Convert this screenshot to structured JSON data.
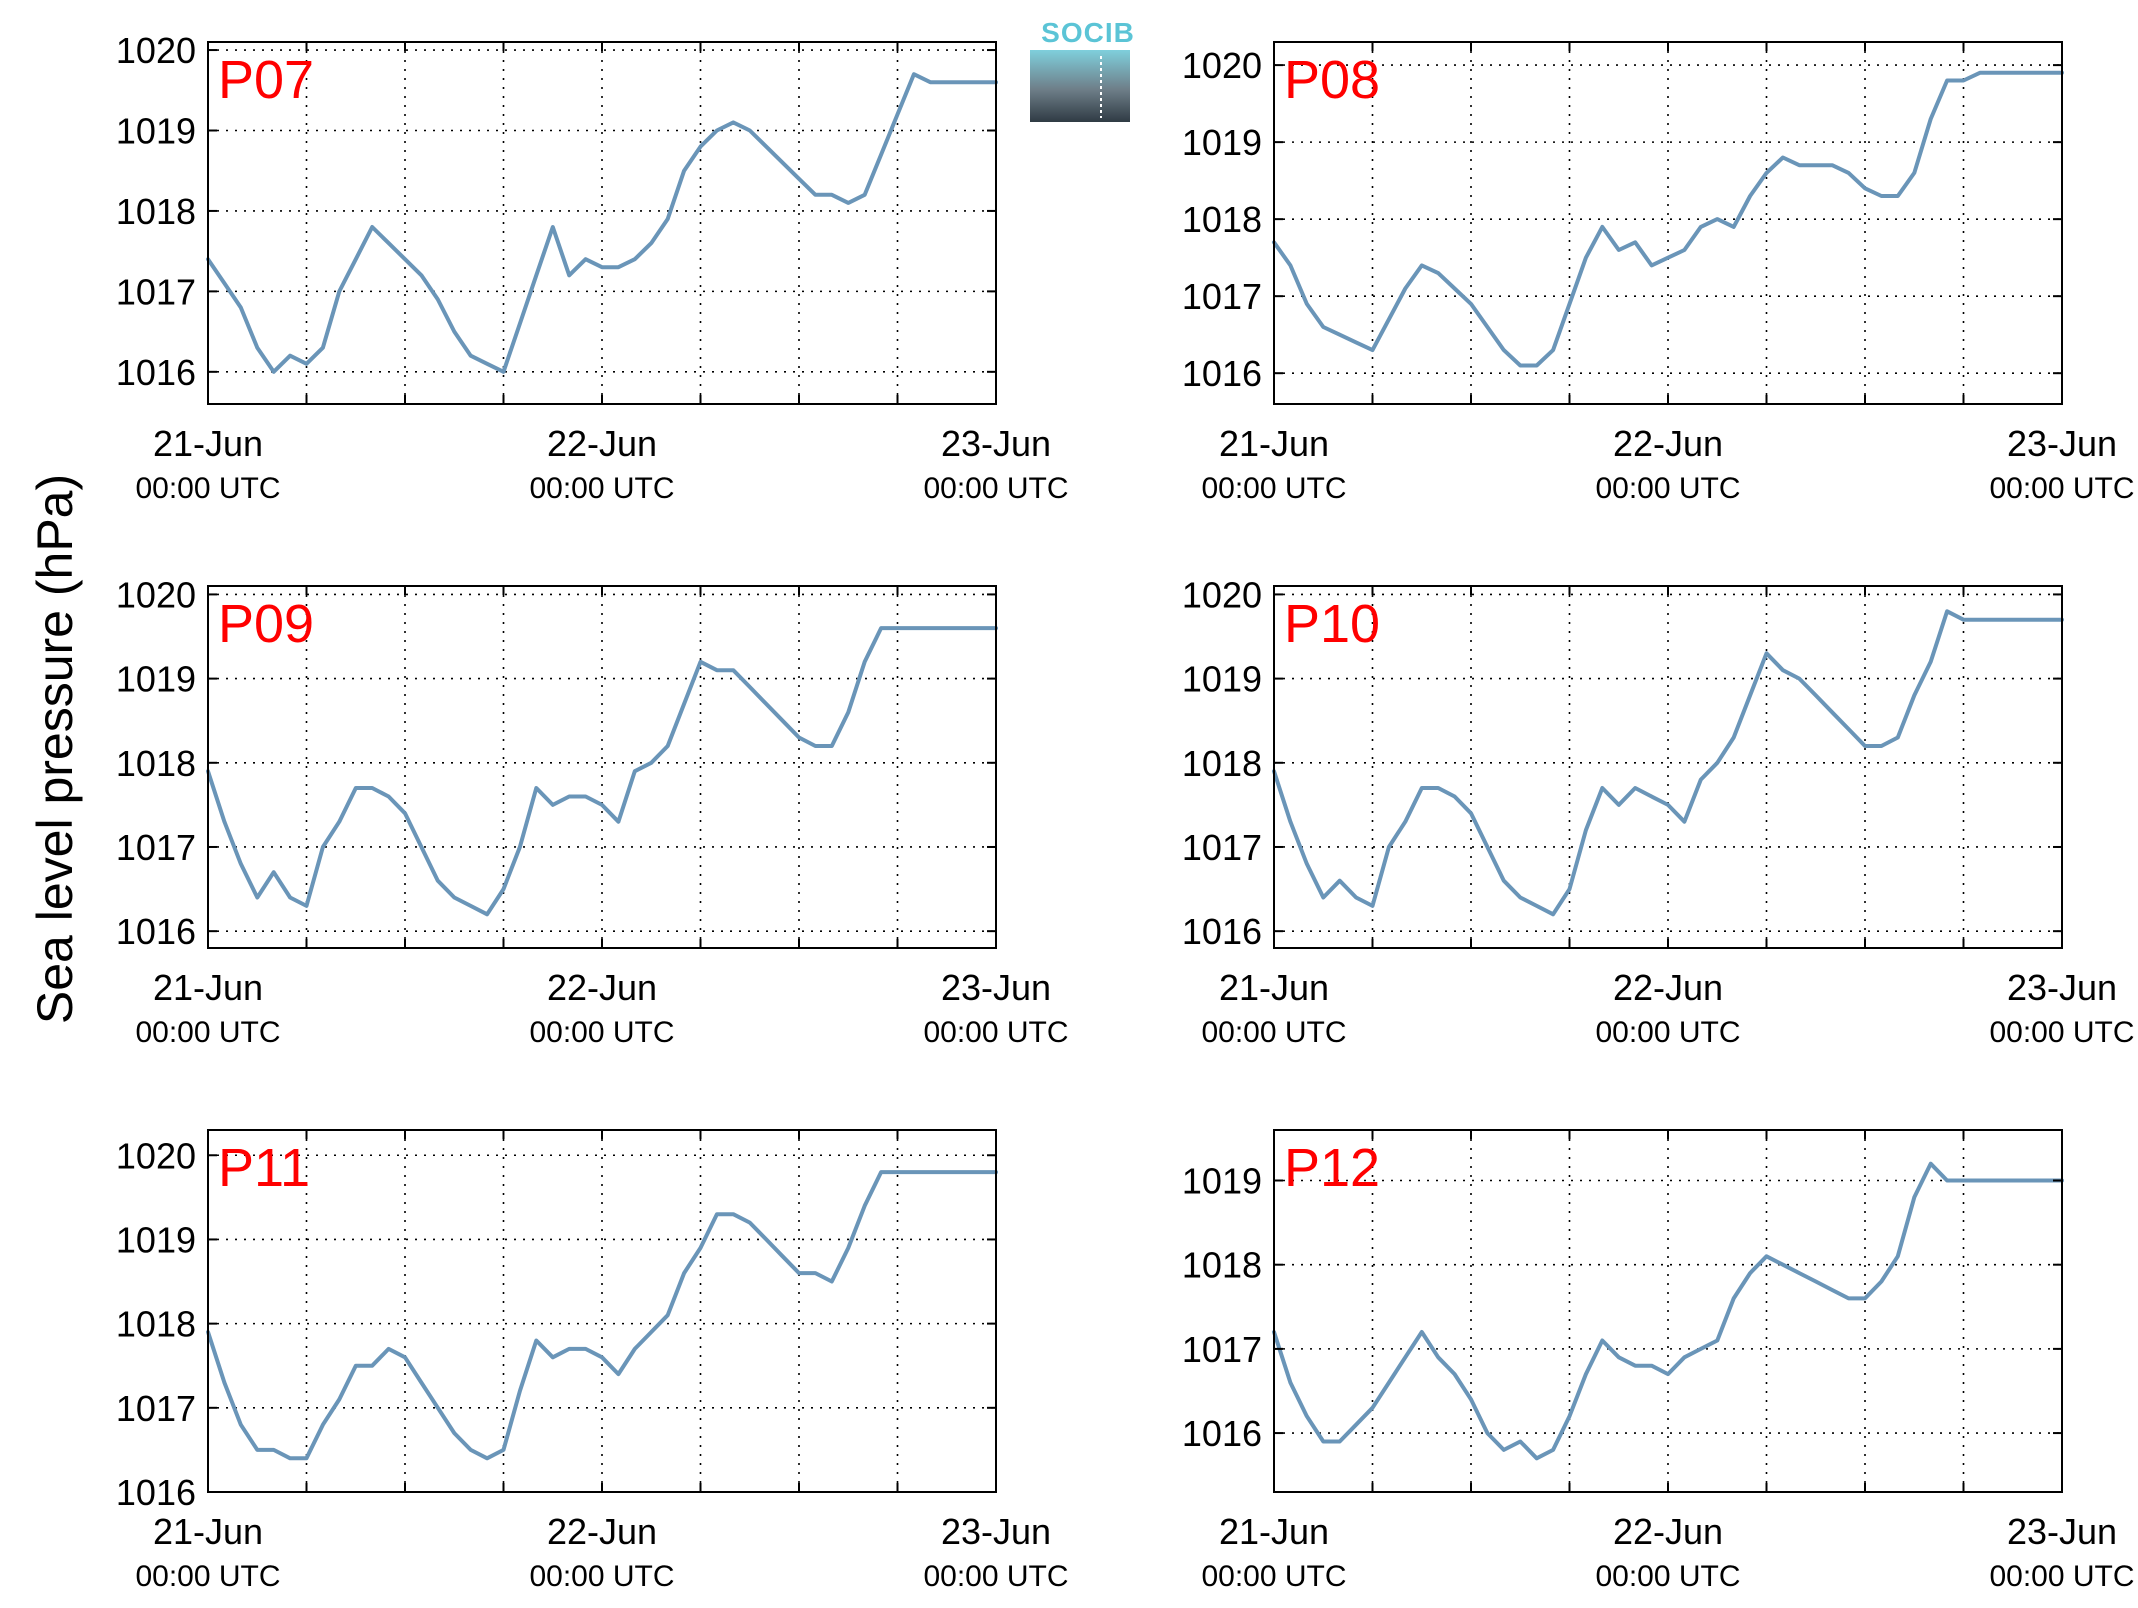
{
  "ylabel": "Sea level pressure (hPa)",
  "logo": {
    "text": "SOCIB"
  },
  "colors": {
    "line": "#6a95b8",
    "panel_label": "#ff0000",
    "grid": "#000000"
  },
  "chart_data": [
    {
      "type": "line",
      "label": "P07",
      "xlim": [
        0,
        48
      ],
      "ylim": [
        1015.6,
        1020.1
      ],
      "yticks": [
        1016,
        1017,
        1018,
        1019,
        1020
      ],
      "xticks": [
        {
          "x": 0,
          "line1": "21-Jun",
          "line2": "00:00 UTC"
        },
        {
          "x": 24,
          "line1": "22-Jun",
          "line2": "00:00 UTC"
        },
        {
          "x": 48,
          "line1": "23-Jun",
          "line2": "00:00 UTC"
        }
      ],
      "minor_x": [
        6,
        12,
        18,
        30,
        36,
        42
      ],
      "x": [
        0,
        1,
        2,
        3,
        4,
        5,
        6,
        7,
        8,
        9,
        10,
        11,
        12,
        13,
        14,
        15,
        16,
        17,
        18,
        19,
        20,
        21,
        22,
        23,
        24,
        25,
        26,
        27,
        28,
        29,
        30,
        31,
        32,
        33,
        34,
        35,
        36,
        37,
        38,
        39,
        40,
        41,
        42,
        43,
        44,
        45,
        46,
        47,
        48
      ],
      "y": [
        1017.4,
        1017.1,
        1016.8,
        1016.3,
        1016.0,
        1016.2,
        1016.1,
        1016.3,
        1017.0,
        1017.4,
        1017.8,
        1017.6,
        1017.4,
        1017.2,
        1016.9,
        1016.5,
        1016.2,
        1016.1,
        1016.0,
        1016.6,
        1017.2,
        1017.8,
        1017.2,
        1017.4,
        1017.3,
        1017.3,
        1017.4,
        1017.6,
        1017.9,
        1018.5,
        1018.8,
        1019.0,
        1019.1,
        1019.0,
        1018.8,
        1018.6,
        1018.4,
        1018.2,
        1018.2,
        1018.1,
        1018.2,
        1018.7,
        1019.2,
        1019.7,
        1019.6,
        1019.6,
        1019.6,
        1019.6,
        1019.6
      ]
    },
    {
      "type": "line",
      "label": "P08",
      "xlim": [
        0,
        48
      ],
      "ylim": [
        1015.6,
        1020.3
      ],
      "yticks": [
        1016,
        1017,
        1018,
        1019,
        1020
      ],
      "xticks": [
        {
          "x": 0,
          "line1": "21-Jun",
          "line2": "00:00 UTC"
        },
        {
          "x": 24,
          "line1": "22-Jun",
          "line2": "00:00 UTC"
        },
        {
          "x": 48,
          "line1": "23-Jun",
          "line2": "00:00 UTC"
        }
      ],
      "minor_x": [
        6,
        12,
        18,
        30,
        36,
        42
      ],
      "x": [
        0,
        1,
        2,
        3,
        4,
        5,
        6,
        7,
        8,
        9,
        10,
        11,
        12,
        13,
        14,
        15,
        16,
        17,
        18,
        19,
        20,
        21,
        22,
        23,
        24,
        25,
        26,
        27,
        28,
        29,
        30,
        31,
        32,
        33,
        34,
        35,
        36,
        37,
        38,
        39,
        40,
        41,
        42,
        43,
        44,
        45,
        46,
        47,
        48
      ],
      "y": [
        1017.7,
        1017.4,
        1016.9,
        1016.6,
        1016.5,
        1016.4,
        1016.3,
        1016.7,
        1017.1,
        1017.4,
        1017.3,
        1017.1,
        1016.9,
        1016.6,
        1016.3,
        1016.1,
        1016.1,
        1016.3,
        1016.9,
        1017.5,
        1017.9,
        1017.6,
        1017.7,
        1017.4,
        1017.5,
        1017.6,
        1017.9,
        1018.0,
        1017.9,
        1018.3,
        1018.6,
        1018.8,
        1018.7,
        1018.7,
        1018.7,
        1018.6,
        1018.4,
        1018.3,
        1018.3,
        1018.6,
        1019.3,
        1019.8,
        1019.8,
        1019.9,
        1019.9,
        1019.9,
        1019.9,
        1019.9,
        1019.9
      ]
    },
    {
      "type": "line",
      "label": "P09",
      "xlim": [
        0,
        48
      ],
      "ylim": [
        1015.8,
        1020.1
      ],
      "yticks": [
        1016,
        1017,
        1018,
        1019,
        1020
      ],
      "xticks": [
        {
          "x": 0,
          "line1": "21-Jun",
          "line2": "00:00 UTC"
        },
        {
          "x": 24,
          "line1": "22-Jun",
          "line2": "00:00 UTC"
        },
        {
          "x": 48,
          "line1": "23-Jun",
          "line2": "00:00 UTC"
        }
      ],
      "minor_x": [
        6,
        12,
        18,
        30,
        36,
        42
      ],
      "x": [
        0,
        1,
        2,
        3,
        4,
        5,
        6,
        7,
        8,
        9,
        10,
        11,
        12,
        13,
        14,
        15,
        16,
        17,
        18,
        19,
        20,
        21,
        22,
        23,
        24,
        25,
        26,
        27,
        28,
        29,
        30,
        31,
        32,
        33,
        34,
        35,
        36,
        37,
        38,
        39,
        40,
        41,
        42,
        43,
        44,
        45,
        46,
        47,
        48
      ],
      "y": [
        1017.9,
        1017.3,
        1016.8,
        1016.4,
        1016.7,
        1016.4,
        1016.3,
        1017.0,
        1017.3,
        1017.7,
        1017.7,
        1017.6,
        1017.4,
        1017.0,
        1016.6,
        1016.4,
        1016.3,
        1016.2,
        1016.5,
        1017.0,
        1017.7,
        1017.5,
        1017.6,
        1017.6,
        1017.5,
        1017.3,
        1017.9,
        1018.0,
        1018.2,
        1018.7,
        1019.2,
        1019.1,
        1019.1,
        1018.9,
        1018.7,
        1018.5,
        1018.3,
        1018.2,
        1018.2,
        1018.6,
        1019.2,
        1019.6,
        1019.6,
        1019.6,
        1019.6,
        1019.6,
        1019.6,
        1019.6,
        1019.6
      ]
    },
    {
      "type": "line",
      "label": "P10",
      "xlim": [
        0,
        48
      ],
      "ylim": [
        1015.8,
        1020.1
      ],
      "yticks": [
        1016,
        1017,
        1018,
        1019,
        1020
      ],
      "xticks": [
        {
          "x": 0,
          "line1": "21-Jun",
          "line2": "00:00 UTC"
        },
        {
          "x": 24,
          "line1": "22-Jun",
          "line2": "00:00 UTC"
        },
        {
          "x": 48,
          "line1": "23-Jun",
          "line2": "00:00 UTC"
        }
      ],
      "minor_x": [
        6,
        12,
        18,
        30,
        36,
        42
      ],
      "x": [
        0,
        1,
        2,
        3,
        4,
        5,
        6,
        7,
        8,
        9,
        10,
        11,
        12,
        13,
        14,
        15,
        16,
        17,
        18,
        19,
        20,
        21,
        22,
        23,
        24,
        25,
        26,
        27,
        28,
        29,
        30,
        31,
        32,
        33,
        34,
        35,
        36,
        37,
        38,
        39,
        40,
        41,
        42,
        43,
        44,
        45,
        46,
        47,
        48
      ],
      "y": [
        1017.9,
        1017.3,
        1016.8,
        1016.4,
        1016.6,
        1016.4,
        1016.3,
        1017.0,
        1017.3,
        1017.7,
        1017.7,
        1017.6,
        1017.4,
        1017.0,
        1016.6,
        1016.4,
        1016.3,
        1016.2,
        1016.5,
        1017.2,
        1017.7,
        1017.5,
        1017.7,
        1017.6,
        1017.5,
        1017.3,
        1017.8,
        1018.0,
        1018.3,
        1018.8,
        1019.3,
        1019.1,
        1019.0,
        1018.8,
        1018.6,
        1018.4,
        1018.2,
        1018.2,
        1018.3,
        1018.8,
        1019.2,
        1019.8,
        1019.7,
        1019.7,
        1019.7,
        1019.7,
        1019.7,
        1019.7,
        1019.7
      ]
    },
    {
      "type": "line",
      "label": "P11",
      "xlim": [
        0,
        48
      ],
      "ylim": [
        1016.0,
        1020.3
      ],
      "yticks": [
        1016,
        1017,
        1018,
        1019,
        1020
      ],
      "xticks": [
        {
          "x": 0,
          "line1": "21-Jun",
          "line2": "00:00 UTC"
        },
        {
          "x": 24,
          "line1": "22-Jun",
          "line2": "00:00 UTC"
        },
        {
          "x": 48,
          "line1": "23-Jun",
          "line2": "00:00 UTC"
        }
      ],
      "minor_x": [
        6,
        12,
        18,
        30,
        36,
        42
      ],
      "x": [
        0,
        1,
        2,
        3,
        4,
        5,
        6,
        7,
        8,
        9,
        10,
        11,
        12,
        13,
        14,
        15,
        16,
        17,
        18,
        19,
        20,
        21,
        22,
        23,
        24,
        25,
        26,
        27,
        28,
        29,
        30,
        31,
        32,
        33,
        34,
        35,
        36,
        37,
        38,
        39,
        40,
        41,
        42,
        43,
        44,
        45,
        46,
        47,
        48
      ],
      "y": [
        1017.9,
        1017.3,
        1016.8,
        1016.5,
        1016.5,
        1016.4,
        1016.4,
        1016.8,
        1017.1,
        1017.5,
        1017.5,
        1017.7,
        1017.6,
        1017.3,
        1017.0,
        1016.7,
        1016.5,
        1016.4,
        1016.5,
        1017.2,
        1017.8,
        1017.6,
        1017.7,
        1017.7,
        1017.6,
        1017.4,
        1017.7,
        1017.9,
        1018.1,
        1018.6,
        1018.9,
        1019.3,
        1019.3,
        1019.2,
        1019.0,
        1018.8,
        1018.6,
        1018.6,
        1018.5,
        1018.9,
        1019.4,
        1019.8,
        1019.8,
        1019.8,
        1019.8,
        1019.8,
        1019.8,
        1019.8,
        1019.8
      ]
    },
    {
      "type": "line",
      "label": "P12",
      "xlim": [
        0,
        48
      ],
      "ylim": [
        1015.3,
        1019.6
      ],
      "yticks": [
        1016,
        1017,
        1018,
        1019
      ],
      "xticks": [
        {
          "x": 0,
          "line1": "21-Jun",
          "line2": "00:00 UTC"
        },
        {
          "x": 24,
          "line1": "22-Jun",
          "line2": "00:00 UTC"
        },
        {
          "x": 48,
          "line1": "23-Jun",
          "line2": "00:00 UTC"
        }
      ],
      "minor_x": [
        6,
        12,
        18,
        30,
        36,
        42
      ],
      "x": [
        0,
        1,
        2,
        3,
        4,
        5,
        6,
        7,
        8,
        9,
        10,
        11,
        12,
        13,
        14,
        15,
        16,
        17,
        18,
        19,
        20,
        21,
        22,
        23,
        24,
        25,
        26,
        27,
        28,
        29,
        30,
        31,
        32,
        33,
        34,
        35,
        36,
        37,
        38,
        39,
        40,
        41,
        42,
        43,
        44,
        45,
        46,
        47,
        48
      ],
      "y": [
        1017.2,
        1016.6,
        1016.2,
        1015.9,
        1015.9,
        1016.1,
        1016.3,
        1016.6,
        1016.9,
        1017.2,
        1016.9,
        1016.7,
        1016.4,
        1016.0,
        1015.8,
        1015.9,
        1015.7,
        1015.8,
        1016.2,
        1016.7,
        1017.1,
        1016.9,
        1016.8,
        1016.8,
        1016.7,
        1016.9,
        1017.0,
        1017.1,
        1017.6,
        1017.9,
        1018.1,
        1018.0,
        1017.9,
        1017.8,
        1017.7,
        1017.6,
        1017.6,
        1017.8,
        1018.1,
        1018.8,
        1019.2,
        1019.0,
        1019.0,
        1019.0,
        1019.0,
        1019.0,
        1019.0,
        1019.0,
        1019.0
      ]
    }
  ]
}
